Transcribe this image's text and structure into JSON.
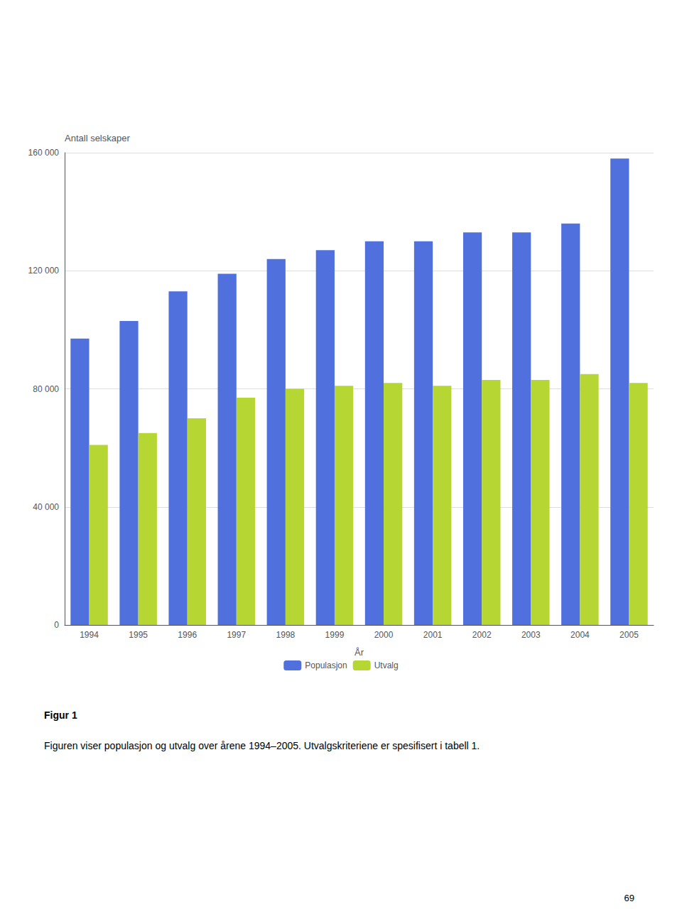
{
  "chart_data": {
    "type": "bar",
    "categories": [
      "1994",
      "1995",
      "1996",
      "1997",
      "1998",
      "1999",
      "2000",
      "2001",
      "2002",
      "2003",
      "2004",
      "2005"
    ],
    "series": [
      {
        "name": "Populasjon",
        "values": [
          97000,
          103000,
          113000,
          119000,
          124000,
          127000,
          130000,
          130000,
          133000,
          133000,
          136000,
          158000
        ]
      },
      {
        "name": "Utvalg",
        "values": [
          61000,
          65000,
          70000,
          77000,
          80000,
          81000,
          82000,
          81000,
          83000,
          83000,
          85000,
          82000
        ]
      }
    ],
    "xlabel": "År",
    "ylabel": "Antall selskaper",
    "ylim": [
      0,
      160000
    ],
    "yticks": [
      0,
      {
        "value": 40000,
        "label": "40 000"
      },
      {
        "value": 80000,
        "label": "80 000"
      },
      {
        "value": 120000,
        "label": "120 000"
      },
      {
        "value": 160000,
        "label": "160 000"
      }
    ],
    "grid": true,
    "legend": "bottom",
    "annotations": [
      "Figur 1",
      "Figuren viser populasjon og utvalg over årene 1994–2005. Utvalgskriteriene er spesifisert i tabell 1.",
      "69"
    ]
  }
}
